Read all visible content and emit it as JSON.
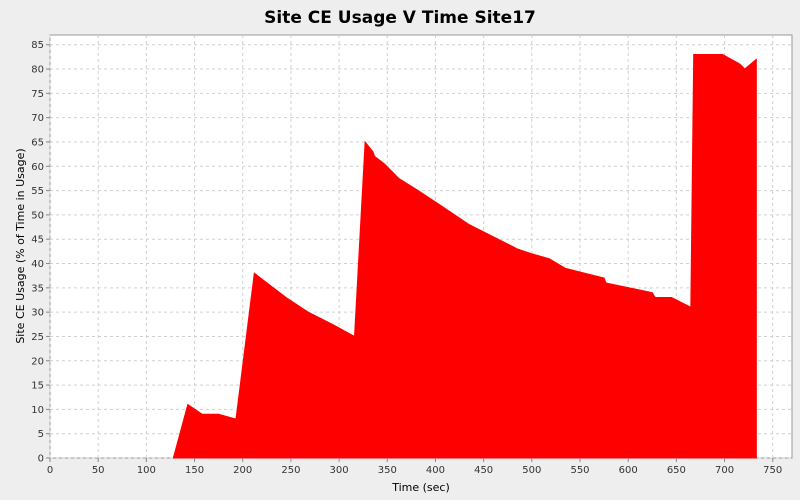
{
  "chart_data": {
    "type": "area",
    "title": "Site CE Usage V Time Site17",
    "xlabel": "Time (sec)",
    "ylabel": "Site CE Usage (% of Time in Usage)",
    "xlim": [
      0,
      770
    ],
    "ylim": [
      0,
      87
    ],
    "x_ticks": [
      0,
      50,
      100,
      150,
      200,
      250,
      300,
      350,
      400,
      450,
      500,
      550,
      600,
      650,
      700,
      750
    ],
    "y_ticks": [
      0,
      5,
      10,
      15,
      20,
      25,
      30,
      35,
      40,
      45,
      50,
      55,
      60,
      65,
      70,
      75,
      80,
      85
    ],
    "grid": true,
    "color": "#ff0000",
    "series": [
      {
        "name": "Site17",
        "x": [
          128,
          143,
          158,
          175,
          193,
          212,
          245,
          268,
          293,
          316,
          327,
          335,
          337,
          347,
          362,
          382,
          405,
          435,
          465,
          485,
          500,
          518,
          535,
          555,
          575,
          577,
          625,
          628,
          645,
          665,
          668,
          698,
          716,
          721,
          733
        ],
        "y": [
          0,
          11,
          9,
          9,
          8,
          38,
          33,
          30,
          27.5,
          25,
          65,
          63,
          62,
          60.5,
          57.5,
          55,
          52,
          48,
          45,
          43,
          42,
          41,
          39,
          38,
          37,
          36,
          34,
          33,
          33,
          31,
          83,
          83,
          81,
          80,
          82
        ]
      }
    ]
  }
}
